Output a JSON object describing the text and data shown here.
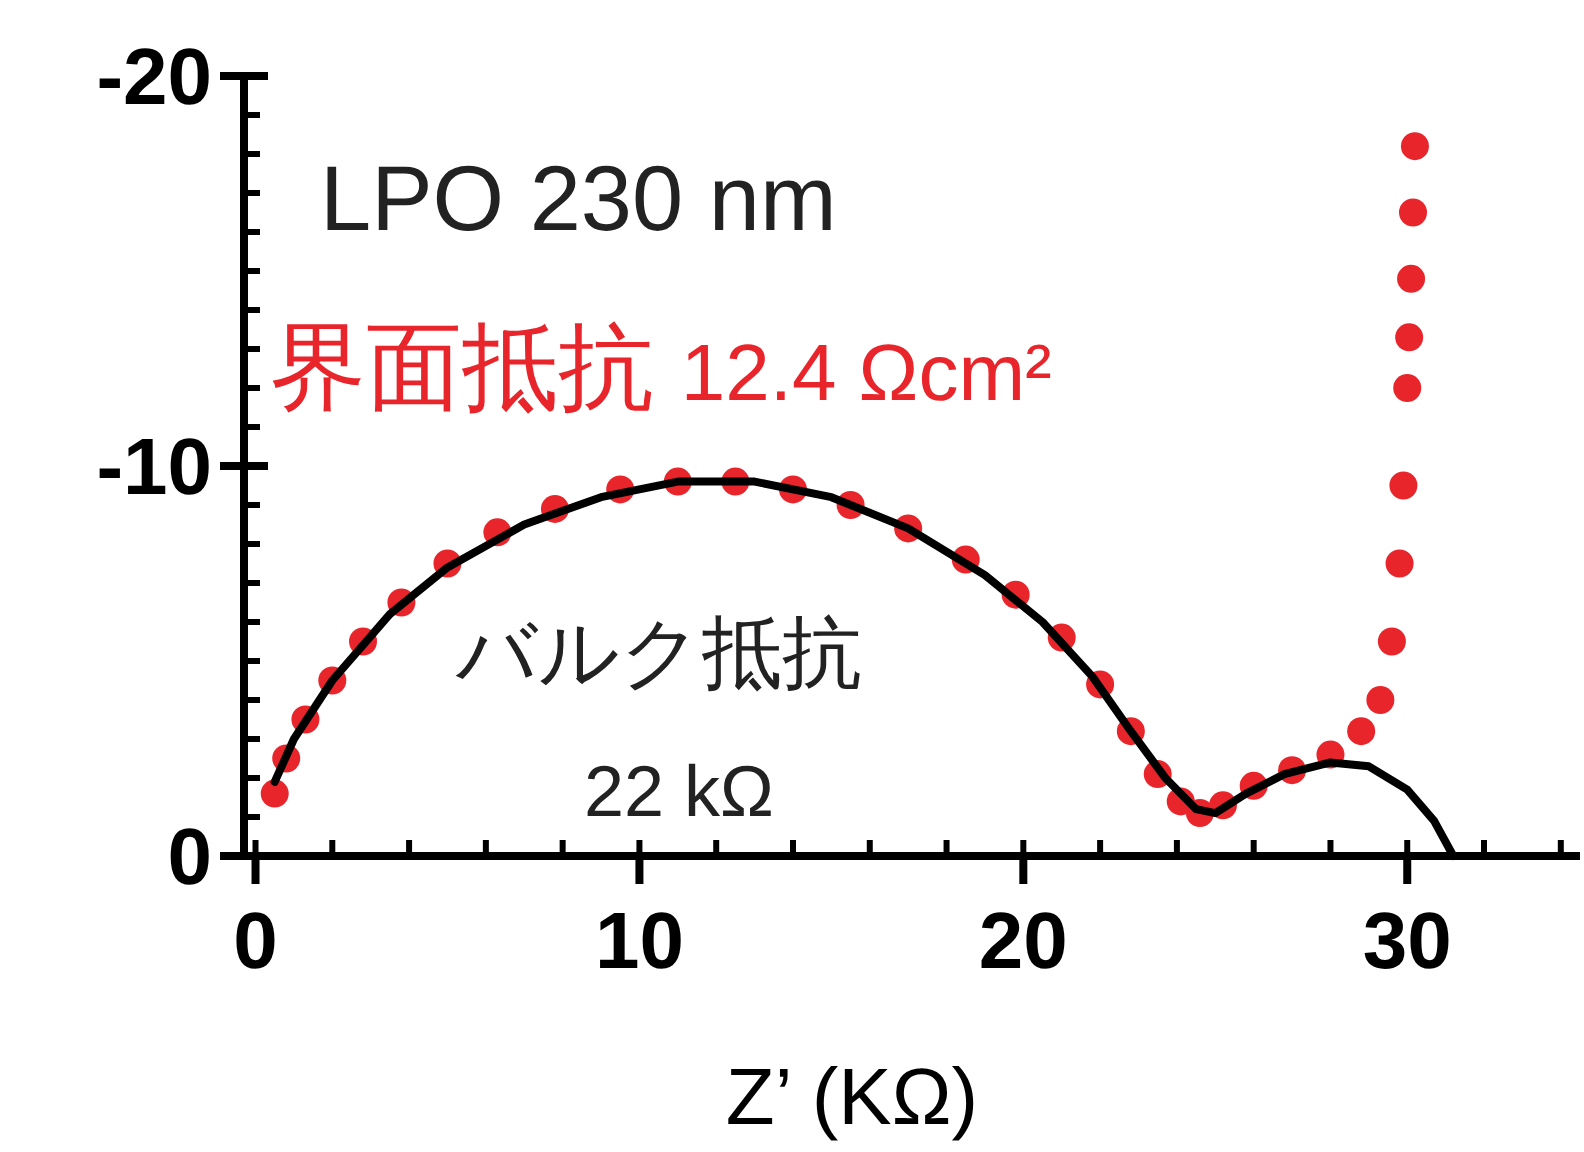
{
  "chart_data": {
    "type": "scatter",
    "xlabel": "Z’ (KΩ)",
    "xlim": [
      -0.3,
      34.5
    ],
    "ylim": [
      0,
      -20
    ],
    "xticks": [
      0,
      10,
      20,
      30
    ],
    "yticks": [
      -20,
      -10,
      0
    ],
    "grid": false,
    "annotations": [
      "LPO 230 nm",
      "界面抵抗 12.4 Ωcm²",
      "バルク抵抗",
      "22 kΩ"
    ],
    "series": [
      {
        "type": "scatter",
        "marker": "circle",
        "color": "#e8252b",
        "x": [
          0.5,
          0.8,
          1.3,
          2,
          2.8,
          3.8,
          5,
          6.3,
          7.8,
          9.5,
          11,
          12.5,
          14,
          15.5,
          17,
          18.5,
          19.8,
          21,
          22,
          22.8,
          23.5,
          24.1,
          24.6,
          25.2,
          26,
          27,
          28,
          28.8,
          29.3,
          29.6,
          29.8,
          29.9,
          30.0,
          30.05,
          30.1,
          30.15,
          30.2
        ],
        "values": [
          -1.6,
          -2.5,
          -3.5,
          -4.5,
          -5.5,
          -6.5,
          -7.5,
          -8.3,
          -8.9,
          -9.4,
          -9.6,
          -9.6,
          -9.4,
          -9.0,
          -8.4,
          -7.6,
          -6.7,
          -5.6,
          -4.4,
          -3.2,
          -2.1,
          -1.4,
          -1.1,
          -1.3,
          -1.8,
          -2.2,
          -2.6,
          -3.2,
          -4.0,
          -5.5,
          -7.5,
          -9.5,
          -12,
          -13.3,
          -14.8,
          -16.5,
          -18.2
        ]
      },
      {
        "type": "line",
        "marker": "none",
        "line_style": "solid",
        "color": "#000000",
        "x": [
          0.5,
          1,
          2,
          3.5,
          5,
          7,
          9,
          11,
          13,
          15,
          17,
          19,
          20.5,
          21.8,
          22.8,
          23.7,
          24.5,
          25,
          25.8,
          26.8,
          28,
          29,
          30,
          30.7,
          31.2
        ],
        "values": [
          -1.9,
          -3,
          -4.5,
          -6.2,
          -7.4,
          -8.5,
          -9.2,
          -9.6,
          -9.6,
          -9.2,
          -8.4,
          -7.2,
          -6,
          -4.6,
          -3.2,
          -2,
          -1.2,
          -1.1,
          -1.6,
          -2.1,
          -2.4,
          -2.3,
          -1.7,
          -0.9,
          0
        ]
      }
    ]
  }
}
